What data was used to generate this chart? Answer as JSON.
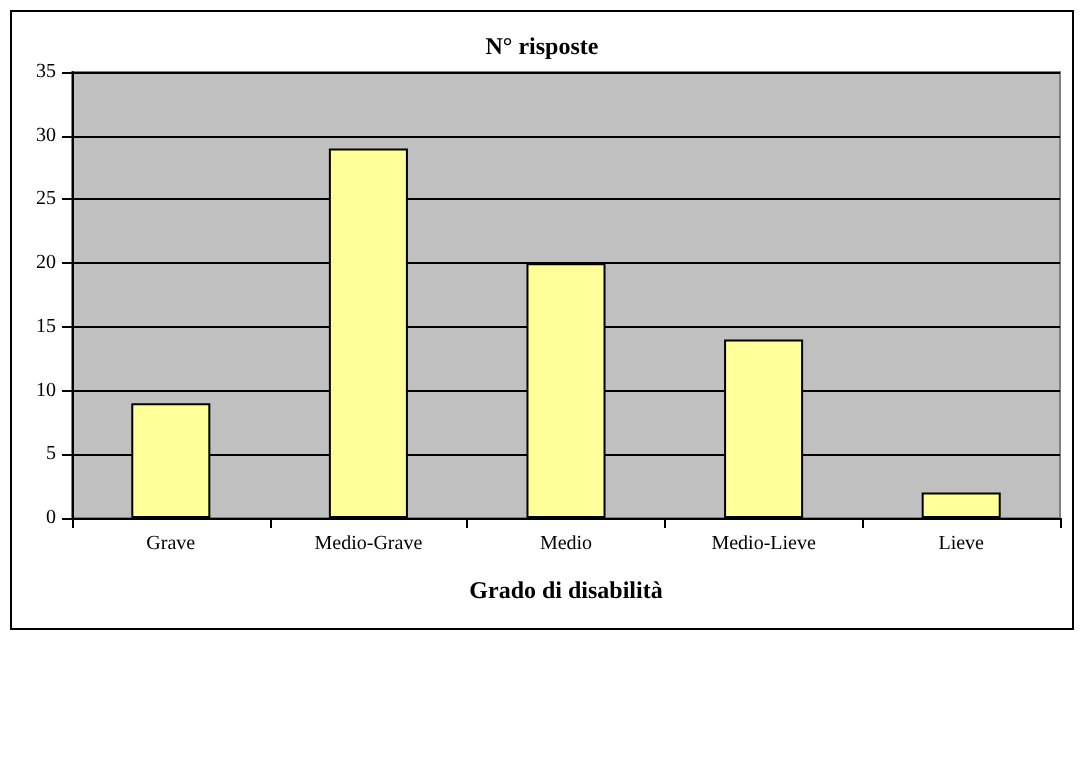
{
  "chart_data": {
    "type": "bar",
    "title": "N° risposte",
    "xlabel": "Grado di disabilità",
    "categories": [
      "Grave",
      "Medio-Grave",
      "Medio",
      "Medio-Lieve",
      "Lieve"
    ],
    "values": [
      9,
      29,
      20,
      14,
      2
    ],
    "color": "#ffff99",
    "ylim": [
      0,
      35
    ],
    "yticks": [
      0,
      5,
      10,
      15,
      20,
      25,
      30,
      35
    ],
    "grid": "y"
  }
}
